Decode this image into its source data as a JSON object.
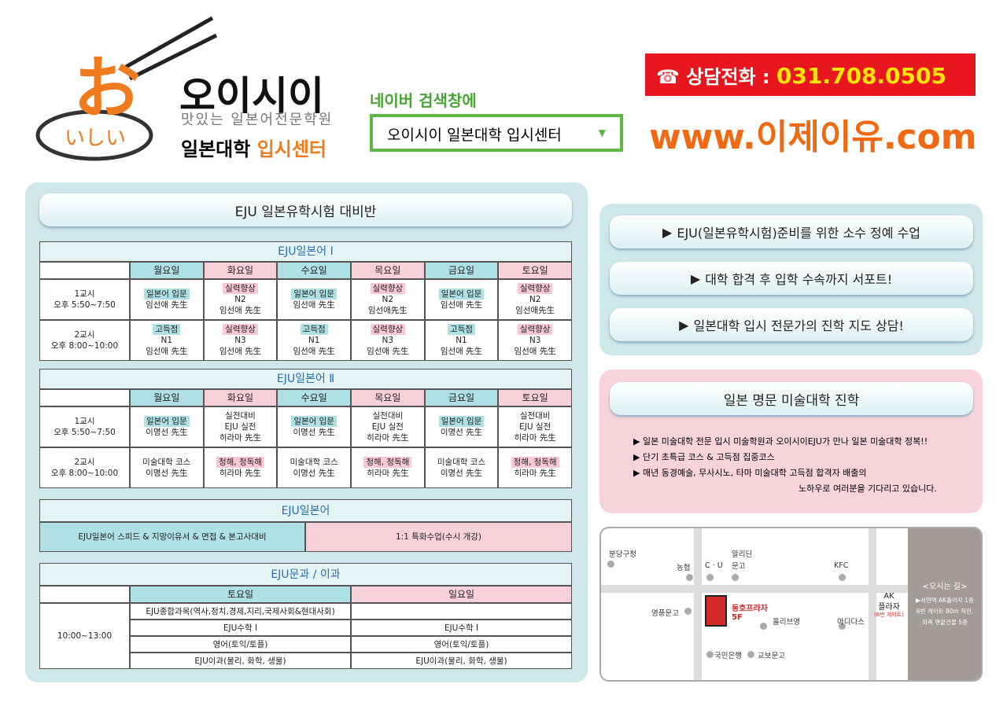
{
  "header": {
    "logo_kana": "お",
    "logo_sub": "いしい",
    "brand": "오이시이",
    "brand_sub": "맛있는 일본어전문학원",
    "center_1": "일본대학",
    "center_2": "입시센터"
  },
  "search": {
    "label": "네이버 검색창에",
    "query": "오이시이 일본대학 입시센터"
  },
  "contact": {
    "label": "상담전화 :",
    "phone": "031.708.0505",
    "site": "www.이제이유.com"
  },
  "schedule": {
    "title": "EJU 일본유학시험 대비반",
    "japanese_1": {
      "title": "EJU일본어 Ⅰ",
      "days": [
        "월요일",
        "화요일",
        "수요일",
        "목요일",
        "금요일",
        "토요일"
      ],
      "rows": [
        {
          "period": "1교시",
          "time": "오후 5:50~7:50",
          "cells": [
            {
              "tag": "일본어 입문",
              "lines": [
                "임선애 先生"
              ]
            },
            {
              "tag": "실력향상",
              "lines": [
                "N2",
                "임선애 先生"
              ]
            },
            {
              "tag": "일본어 입문",
              "lines": [
                "임선애 先生"
              ]
            },
            {
              "tag": "실력향상",
              "lines": [
                "N2",
                "임선애先生"
              ]
            },
            {
              "tag": "일본어 입문",
              "lines": [
                "임선애 先生"
              ]
            },
            {
              "tag": "실력향상",
              "lines": [
                "N2",
                "임선애先生"
              ]
            }
          ]
        },
        {
          "period": "2교시",
          "time": "오후 8:00~10:00",
          "cells": [
            {
              "tag": "고득점",
              "lines": [
                "N1",
                "임선애 先生"
              ]
            },
            {
              "tag": "실력향상",
              "lines": [
                "N3",
                "임선애 先生"
              ]
            },
            {
              "tag": "고득점",
              "lines": [
                "N1",
                "임선애 先生"
              ]
            },
            {
              "tag": "실력향상",
              "lines": [
                "N3",
                "임선애 先生"
              ]
            },
            {
              "tag": "고득점",
              "lines": [
                "N1",
                "임선애 先生"
              ]
            },
            {
              "tag": "실력향상",
              "lines": [
                "N3",
                "임선애 先生"
              ]
            }
          ]
        }
      ]
    },
    "japanese_2": {
      "title": "EJU일본어 Ⅱ",
      "days": [
        "월요일",
        "화요일",
        "수요일",
        "목요일",
        "금요일",
        "토요일"
      ],
      "rows": [
        {
          "period": "1교시",
          "time": "오후 5:50~7:50",
          "cells": [
            {
              "tag": "일본어 입문",
              "lines": [
                "이명선 先生"
              ]
            },
            {
              "lines": [
                "실전대비",
                "EJU 실전",
                "히라마 先生"
              ]
            },
            {
              "tag": "일본어 입문",
              "lines": [
                "이명선 先生"
              ]
            },
            {
              "lines": [
                "실전대비",
                "EJU 실전",
                "히라마 先生"
              ]
            },
            {
              "tag": "일본어 입문",
              "lines": [
                "이명선 先生"
              ]
            },
            {
              "lines": [
                "실전대비",
                "EJU 실전",
                "히라마 先生"
              ]
            }
          ]
        },
        {
          "period": "2교시",
          "time": "오후 8:00~10:00",
          "cells": [
            {
              "lines": [
                "미술대학 코스",
                "이명선 先生"
              ]
            },
            {
              "tag": "청해, 청독해",
              "lines": [
                "히라마 先生"
              ]
            },
            {
              "lines": [
                "미술대학 코스",
                "이명선 先生"
              ]
            },
            {
              "tag": "청해, 청독해",
              "lines": [
                "히라마 先生"
              ]
            },
            {
              "lines": [
                "미술대학 코스",
                "이명선 先生"
              ]
            },
            {
              "tag": "청해, 청독해",
              "lines": [
                "히라마 先生"
              ]
            }
          ]
        }
      ]
    },
    "japanese": {
      "title": "EJU일본어",
      "cells": [
        "EJU일본어 스피드 & 지망이유서 & 면접 & 본고사대비",
        "1:1 특화수업(수시 개강)"
      ]
    },
    "humanities": {
      "title": "EJU문과 / 이과",
      "days": [
        "토요일",
        "일요일"
      ],
      "time": "10:00~13:00",
      "rows": [
        [
          "EJU종합과목(역사,정치,경제,지리,국제사회&현대사회)",
          null
        ],
        [
          "EJU수학 Ⅰ",
          "EJU수학 Ⅰ"
        ],
        [
          "영어(토익/토플)",
          "영어(토익/토플)"
        ],
        [
          "EJU이과(물리, 화학, 생물)",
          "EJU이과(물리, 화학, 생물)"
        ]
      ]
    }
  },
  "features": [
    "EJU(일본유학시험)준비를 위한 소수 정예 수업",
    "대학 합격 후 입학 수속까지 서포트!",
    "일본대학 입시 전문가의 진학 지도 상담!"
  ],
  "art": {
    "title": "일본 명문 미술대학 진학",
    "bullets": [
      "일본 미술대학 전문 입시 미술학원과 오이시이EJU가 만나 일본 미술대학 정복!!",
      "단기 초특급 코스 & 고득점 집중코스",
      "매년 동경예술, 무사시노, 타마 미술대학 고득점 합격자 배출의"
    ],
    "continuation": "노하우로 여러분을 기다리고 있습니다."
  },
  "map": {
    "places": [
      "분당구청",
      "농협",
      "C · U",
      "알리딘",
      "문고",
      "KFC",
      "영풍문고",
      "올리브영",
      "아디다스",
      "국민은행",
      "교보문고"
    ],
    "building": "동호프라자",
    "floor": "5F",
    "ak": [
      "AK",
      "플라자",
      "(6번 게이트)"
    ],
    "directions_title": "<오시는 길>",
    "directions": [
      "▶서현역 AK플라자 1층",
      "6번 게이트 80m 직진,",
      "좌측 맨끝건물 5층"
    ]
  }
}
